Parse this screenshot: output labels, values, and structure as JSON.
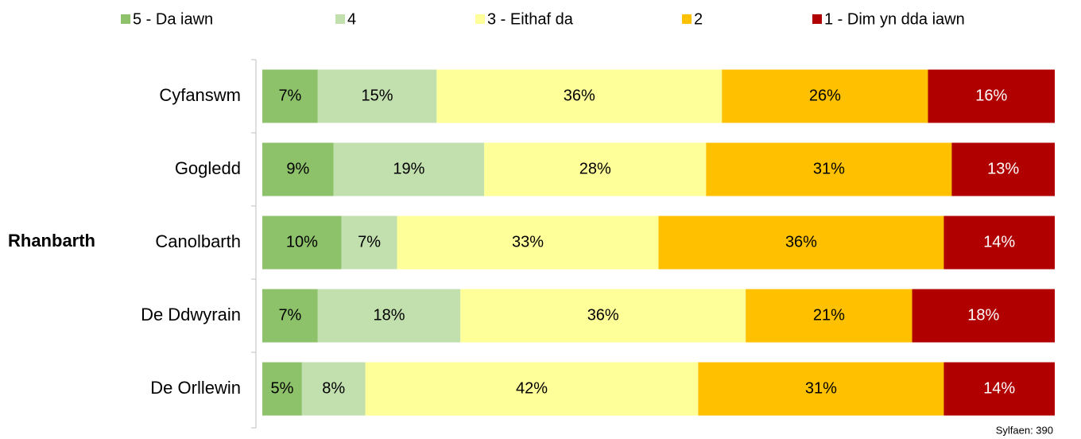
{
  "chart_data": {
    "type": "stacked_barh",
    "ylabel": "Rhanbarth",
    "annotation": "Sylfaen: 390",
    "categories": [
      "Cyfanswm",
      "Gogledd",
      "Canolbarth",
      "De Ddwyrain",
      "De Orllewin"
    ],
    "xlim": [
      0,
      100
    ],
    "series": [
      {
        "name": "5 - Da iawn",
        "color": "#8dc26b",
        "label_color": "#000000",
        "values": [
          7,
          9,
          10,
          7,
          5
        ],
        "value_labels": [
          "7%",
          "9%",
          "10%",
          "7%",
          "5%"
        ]
      },
      {
        "name": "4",
        "color": "#c2dfae",
        "label_color": "#000000",
        "values": [
          15,
          19,
          7,
          18,
          8
        ],
        "value_labels": [
          "15%",
          "19%",
          "7%",
          "18%",
          "8%"
        ]
      },
      {
        "name": "3 - Eithaf da",
        "color": "#ffff99",
        "label_color": "#000000",
        "values": [
          36,
          28,
          33,
          36,
          42
        ],
        "value_labels": [
          "36%",
          "28%",
          "33%",
          "36%",
          "42%"
        ]
      },
      {
        "name": "2",
        "color": "#ffc000",
        "label_color": "#000000",
        "values": [
          26,
          31,
          36,
          21,
          31
        ],
        "value_labels": [
          "26%",
          "31%",
          "36%",
          "21%",
          "31%"
        ]
      },
      {
        "name": "1 - Dim yn dda iawn",
        "color": "#b00000",
        "label_color": "#ffffff",
        "values": [
          16,
          13,
          14,
          18,
          14
        ],
        "value_labels": [
          "16%",
          "13%",
          "14%",
          "18%",
          "14%"
        ]
      }
    ]
  }
}
